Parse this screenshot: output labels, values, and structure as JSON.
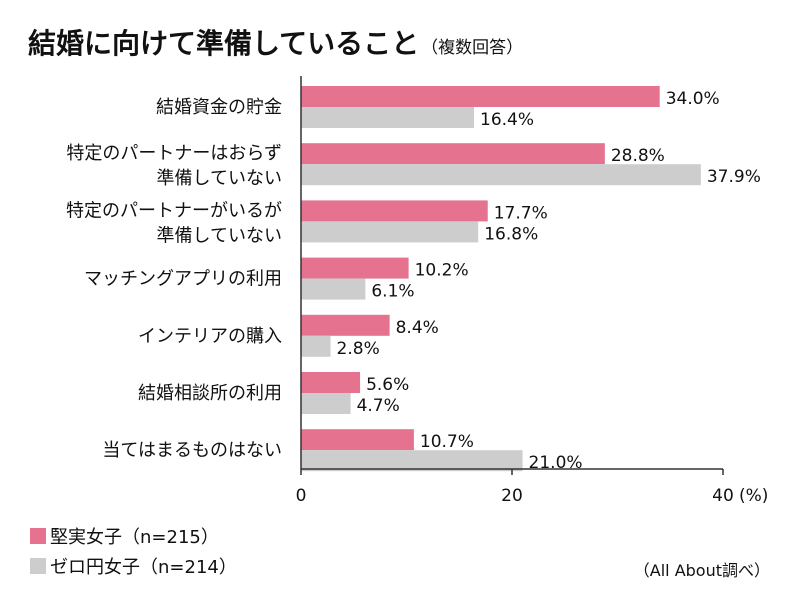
{
  "title": {
    "main": "結婚に向けて準備していること",
    "sub": "（複数回答）"
  },
  "source": "（All About調べ）",
  "colors": {
    "series1": "#e5738f",
    "series2": "#cdcdcd",
    "axis": "#333333"
  },
  "chart_data": {
    "type": "bar",
    "orientation": "horizontal",
    "title": "結婚に向けて準備していること（複数回答）",
    "unit": "(%)",
    "xlim": [
      0,
      40
    ],
    "x_ticks": [
      "0",
      "20",
      "40"
    ],
    "grid": false,
    "legend_position": "bottom-left",
    "categories": [
      [
        "結婚資金の貯金"
      ],
      [
        "特定のパートナーはおらず",
        "準備していない"
      ],
      [
        "特定のパートナーがいるが",
        "準備していない"
      ],
      [
        "マッチングアプリの利用"
      ],
      [
        "インテリアの購入"
      ],
      [
        "結婚相談所の利用"
      ],
      [
        "当てはまるものはない"
      ]
    ],
    "series": [
      {
        "name": "堅実女子（n=215）",
        "values": [
          34.0,
          28.8,
          17.7,
          10.2,
          8.4,
          5.6,
          10.7
        ],
        "labels": [
          "34.0%",
          "28.8%",
          "17.7%",
          "10.2%",
          "8.4%",
          "5.6%",
          "10.7%"
        ]
      },
      {
        "name": "ゼロ円女子（n=214）",
        "values": [
          16.4,
          37.9,
          16.8,
          6.1,
          2.8,
          4.7,
          21.0
        ],
        "labels": [
          "16.4%",
          "37.9%",
          "16.8%",
          "6.1%",
          "2.8%",
          "4.7%",
          "21.0%"
        ]
      }
    ]
  }
}
